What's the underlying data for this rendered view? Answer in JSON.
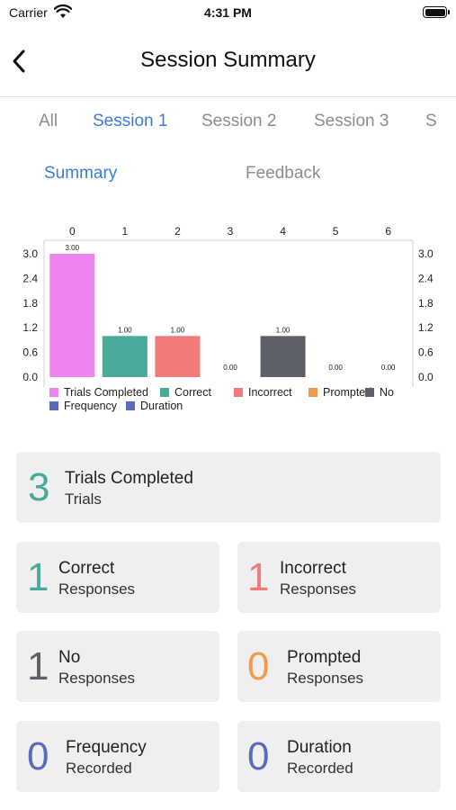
{
  "statusbar": {
    "carrier": "Carrier",
    "time": "4:31 PM"
  },
  "nav": {
    "title": "Session Summary"
  },
  "tabs": [
    {
      "label": "All",
      "active": false
    },
    {
      "label": "Session 1",
      "active": true
    },
    {
      "label": "Session 2",
      "active": false
    },
    {
      "label": "Session 3",
      "active": false
    },
    {
      "label": "S",
      "active": false
    }
  ],
  "subtabs": [
    {
      "label": "Summary",
      "active": true
    },
    {
      "label": "Feedback",
      "active": false
    }
  ],
  "chart_data": {
    "type": "bar",
    "categories": [
      "0",
      "1",
      "2",
      "3",
      "4",
      "5",
      "6"
    ],
    "values": [
      3.0,
      1.0,
      1.0,
      0.0,
      1.0,
      0.0,
      0.0
    ],
    "value_labels": [
      "3.00",
      "1.00",
      "1.00",
      "0.00",
      "1.00",
      "0.00",
      "0.00"
    ],
    "bar_colors": [
      "#ee82ee",
      "#4aaa99",
      "#f27a78",
      "#f2994a",
      "#5d6066",
      "#5a6abf",
      "#5a6abf"
    ],
    "y_ticks": [
      "3.0",
      "2.4",
      "1.8",
      "1.2",
      "0.6",
      "0.0"
    ],
    "ylim": [
      0,
      3.0
    ],
    "x_axis_position": "top",
    "legend_position": "bottom-left",
    "legend": [
      {
        "label": "Trials Completed",
        "color": "#ee82ee"
      },
      {
        "label": "Correct",
        "color": "#4aaa99"
      },
      {
        "label": "Incorrect",
        "color": "#f27a78"
      },
      {
        "label": "Prompted",
        "color": "#f2994a"
      },
      {
        "label": "No",
        "color": "#5d6066"
      },
      {
        "label": "Frequency",
        "color": "#5a6abf"
      },
      {
        "label": "Duration",
        "color": "#5a6abf"
      }
    ]
  },
  "cards": {
    "trials": {
      "value": "3",
      "title": "Trials Completed",
      "sub": "Trials",
      "color": "#4aaa99"
    },
    "correct": {
      "value": "1",
      "title": "Correct",
      "sub": "Responses",
      "color": "#4aaa99"
    },
    "incorrect": {
      "value": "1",
      "title": "Incorrect",
      "sub": "Responses",
      "color": "#f27a78"
    },
    "no": {
      "value": "1",
      "title": "No",
      "sub": "Responses",
      "color": "#5d6066"
    },
    "prompted": {
      "value": "0",
      "title": "Prompted",
      "sub": "Responses",
      "color": "#f2994a"
    },
    "frequency": {
      "value": "0",
      "title": "Frequency",
      "sub": "Recorded",
      "color": "#5a6abf"
    },
    "duration": {
      "value": "0",
      "title": "Duration",
      "sub": "Recorded",
      "color": "#5a6abf"
    }
  }
}
